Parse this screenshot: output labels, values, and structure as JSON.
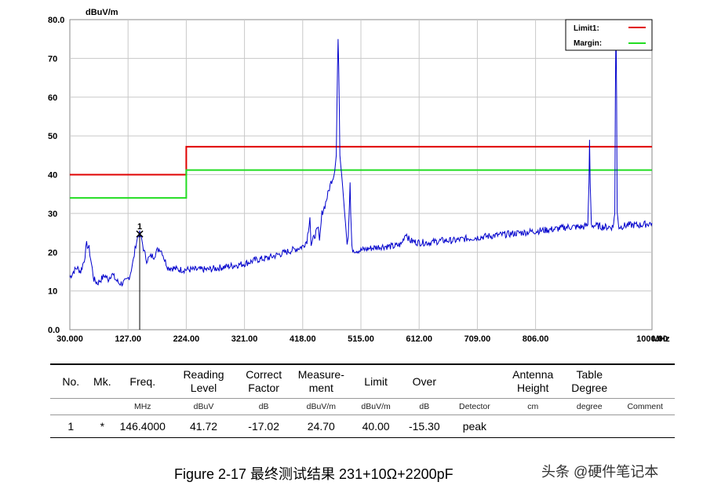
{
  "chart_data": {
    "type": "line",
    "y_unit": "dBuV/m",
    "x_unit": "MHz",
    "ylim": [
      0,
      80
    ],
    "xlim": [
      30,
      1000
    ],
    "y_ticks": [
      {
        "value": 80,
        "label": "80.0"
      },
      {
        "value": 70,
        "label": "70"
      },
      {
        "value": 60,
        "label": "60"
      },
      {
        "value": 50,
        "label": "50"
      },
      {
        "value": 40,
        "label": "40"
      },
      {
        "value": 30,
        "label": "30"
      },
      {
        "value": 20,
        "label": "20"
      },
      {
        "value": 10,
        "label": "10"
      },
      {
        "value": 0,
        "label": "0.0"
      }
    ],
    "x_ticks": [
      {
        "value": 30,
        "label": "30.000"
      },
      {
        "value": 127,
        "label": "127.00"
      },
      {
        "value": 224,
        "label": "224.00"
      },
      {
        "value": 321,
        "label": "321.00"
      },
      {
        "value": 418,
        "label": "418.00"
      },
      {
        "value": 515,
        "label": "515.00"
      },
      {
        "value": 612,
        "label": "612.00"
      },
      {
        "value": 709,
        "label": "709.00"
      },
      {
        "value": 806,
        "label": "806.00"
      },
      {
        "value": 1000,
        "label": "1000.00"
      }
    ],
    "grid": true,
    "legend_position": "top-right",
    "series": [
      {
        "name": "Limit1:",
        "color": "#e00000",
        "points": [
          [
            30,
            40
          ],
          [
            224,
            40
          ],
          [
            224,
            47.2
          ],
          [
            1000,
            47.2
          ]
        ]
      },
      {
        "name": "Margin:",
        "color": "#22dd22",
        "points": [
          [
            30,
            34
          ],
          [
            224,
            34
          ],
          [
            224,
            41.2
          ],
          [
            1000,
            41.2
          ]
        ]
      },
      {
        "color": "#0000cc",
        "points": [
          [
            30,
            13.5
          ],
          [
            36,
            15
          ],
          [
            42,
            16
          ],
          [
            48,
            15
          ],
          [
            54,
            18
          ],
          [
            58,
            22
          ],
          [
            62,
            21
          ],
          [
            66,
            17
          ],
          [
            70,
            13
          ],
          [
            76,
            12
          ],
          [
            82,
            13
          ],
          [
            88,
            14
          ],
          [
            94,
            13
          ],
          [
            100,
            14.5
          ],
          [
            106,
            13
          ],
          [
            112,
            12
          ],
          [
            118,
            12
          ],
          [
            124,
            12.5
          ],
          [
            130,
            14
          ],
          [
            136,
            18
          ],
          [
            140,
            22
          ],
          [
            144,
            24.5
          ],
          [
            146.4,
            24.7
          ],
          [
            150,
            23
          ],
          [
            154,
            20
          ],
          [
            158,
            18
          ],
          [
            162,
            18.5
          ],
          [
            166,
            19
          ],
          [
            170,
            19
          ],
          [
            176,
            20.5
          ],
          [
            180,
            21
          ],
          [
            184,
            20
          ],
          [
            188,
            18
          ],
          [
            194,
            16
          ],
          [
            200,
            16
          ],
          [
            210,
            15.5
          ],
          [
            224,
            15.5
          ],
          [
            240,
            15.5
          ],
          [
            260,
            15.5
          ],
          [
            280,
            16
          ],
          [
            300,
            16.5
          ],
          [
            320,
            17
          ],
          [
            340,
            18
          ],
          [
            360,
            18.5
          ],
          [
            380,
            19.5
          ],
          [
            400,
            20.5
          ],
          [
            410,
            21
          ],
          [
            418,
            21.5
          ],
          [
            425,
            23
          ],
          [
            430,
            29
          ],
          [
            432,
            22
          ],
          [
            440,
            25
          ],
          [
            444,
            26
          ],
          [
            446,
            23
          ],
          [
            450,
            30
          ],
          [
            455,
            32
          ],
          [
            460,
            35
          ],
          [
            465,
            38
          ],
          [
            470,
            40
          ],
          [
            474,
            45
          ],
          [
            476,
            68
          ],
          [
            477,
            75
          ],
          [
            478,
            68
          ],
          [
            480,
            45
          ],
          [
            484,
            38
          ],
          [
            488,
            30
          ],
          [
            492,
            22
          ],
          [
            494,
            24
          ],
          [
            496,
            33
          ],
          [
            497,
            38
          ],
          [
            498,
            30
          ],
          [
            500,
            21
          ],
          [
            505,
            20.5
          ],
          [
            515,
            20.5
          ],
          [
            530,
            21
          ],
          [
            550,
            21.5
          ],
          [
            570,
            21.5
          ],
          [
            582,
            22
          ],
          [
            590,
            25
          ],
          [
            596,
            23
          ],
          [
            610,
            22.5
          ],
          [
            630,
            22.5
          ],
          [
            650,
            23
          ],
          [
            670,
            23
          ],
          [
            690,
            23.5
          ],
          [
            720,
            24
          ],
          [
            750,
            24.5
          ],
          [
            780,
            25
          ],
          [
            810,
            25.5
          ],
          [
            840,
            26
          ],
          [
            860,
            26.5
          ],
          [
            885,
            26.5
          ],
          [
            893,
            27
          ],
          [
            895,
            38
          ],
          [
            896,
            49
          ],
          [
            897,
            38
          ],
          [
            899,
            27
          ],
          [
            920,
            26.5
          ],
          [
            935,
            26.5
          ],
          [
            938,
            30
          ],
          [
            939,
            60
          ],
          [
            940,
            80
          ],
          [
            941,
            60
          ],
          [
            942,
            30
          ],
          [
            945,
            26.5
          ],
          [
            960,
            27
          ],
          [
            980,
            27
          ],
          [
            1000,
            27.5
          ]
        ]
      }
    ],
    "markers": [
      {
        "label": "1",
        "x": 146.4,
        "y": 24.7
      }
    ]
  },
  "table": {
    "header": {
      "no": "No.",
      "mk": "Mk.",
      "freq": "Freq.",
      "reading": "Reading Level",
      "correct": "Correct Factor",
      "measure": "Measure- ment",
      "limit": "Limit",
      "over": "Over",
      "detector": "",
      "antenna": "Antenna Height",
      "table": "Table Degree",
      "comment": ""
    },
    "units": {
      "no": "",
      "mk": "",
      "freq": "MHz",
      "reading": "dBuV",
      "correct": "dB",
      "measure": "dBuV/m",
      "limit": "dBuV/m",
      "over": "dB",
      "detector": "Detector",
      "antenna": "cm",
      "table": "degree",
      "comment": "Comment"
    },
    "rows": [
      {
        "no": "1",
        "mk": "*",
        "freq": "146.4000",
        "reading": "41.72",
        "correct": "-17.02",
        "measure": "24.70",
        "limit": "40.00",
        "over": "-15.30",
        "detector": "peak",
        "antenna": "",
        "table": "",
        "comment": ""
      }
    ]
  },
  "caption": "Figure 2-17  最终测试结果 231+10Ω+2200pF",
  "watermark": "头条 @硬件笔记本"
}
